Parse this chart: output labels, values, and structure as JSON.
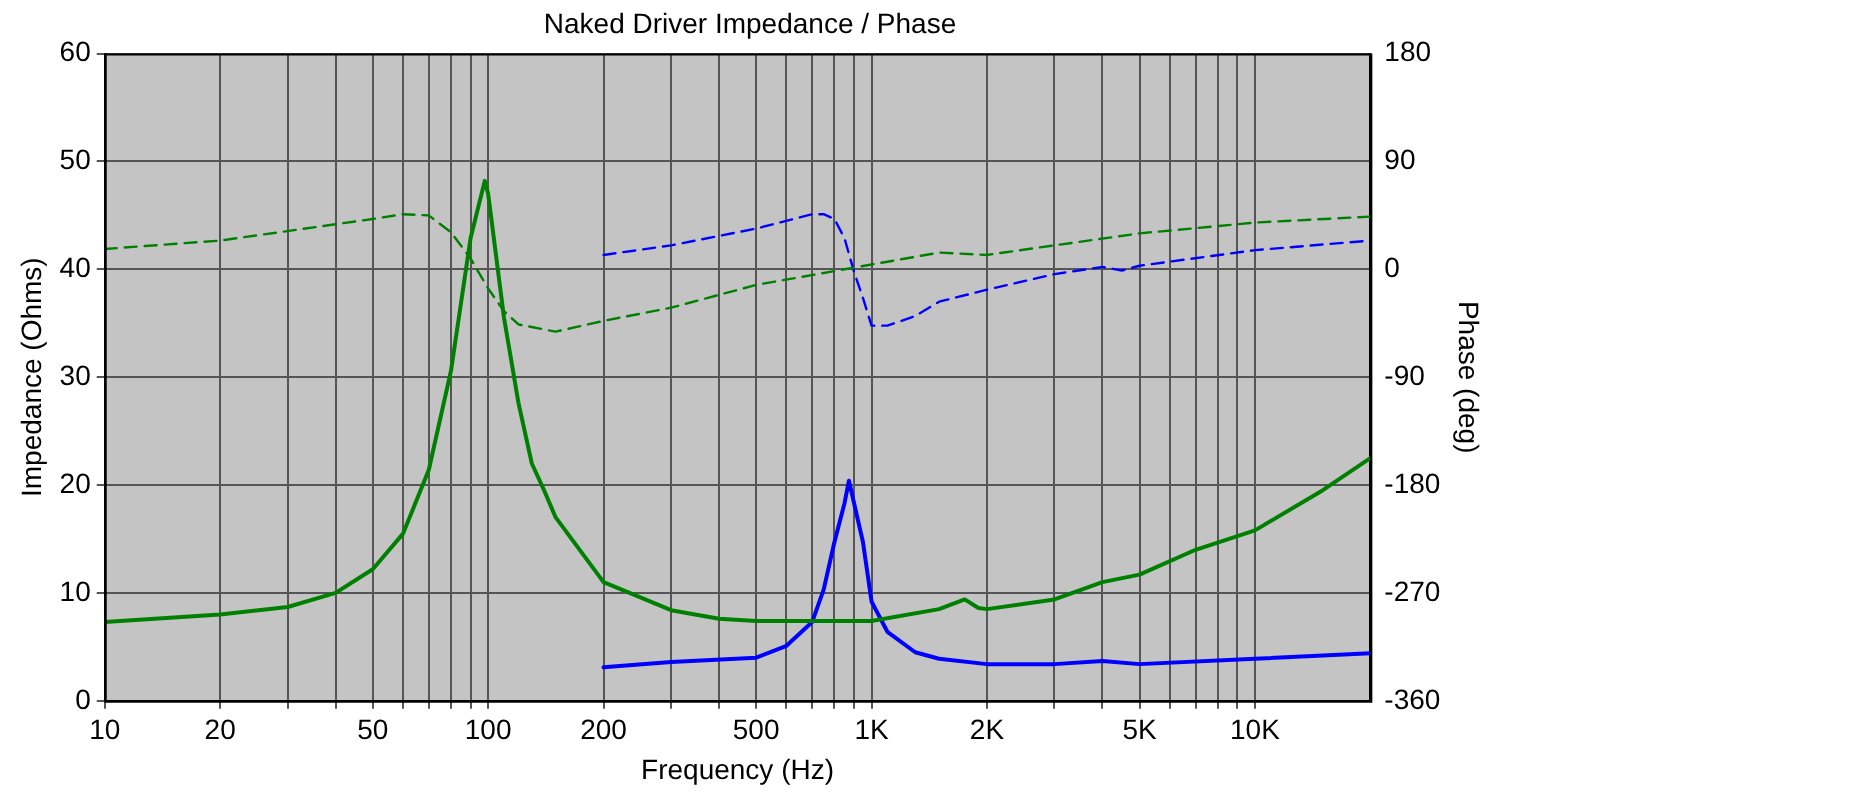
{
  "chart_data": {
    "type": "line",
    "title": "Naked Driver Impedance / Phase",
    "xlabel": "Frequency (Hz)",
    "ylabel": "Impedance (Ohms)",
    "y2label": "Phase (deg)",
    "log": "x",
    "grid": true,
    "legend": false,
    "marker": "none",
    "xlim": [
      10,
      20000
    ],
    "xticks": [
      10,
      20,
      {
        "value": 30,
        "label": null
      },
      {
        "value": 40,
        "label": null
      },
      50,
      {
        "value": 60,
        "label": null
      },
      {
        "value": 70,
        "label": null
      },
      {
        "value": 80,
        "label": null
      },
      {
        "value": 90,
        "label": null
      },
      100,
      200,
      {
        "value": 300,
        "label": null
      },
      {
        "value": 400,
        "label": null
      },
      500,
      {
        "value": 600,
        "label": null
      },
      {
        "value": 700,
        "label": null
      },
      {
        "value": 800,
        "label": null
      },
      {
        "value": 900,
        "label": null
      },
      {
        "value": 1000,
        "label": "1K"
      },
      {
        "value": 2000,
        "label": "2K"
      },
      {
        "value": 3000,
        "label": null
      },
      {
        "value": 4000,
        "label": null
      },
      {
        "value": 5000,
        "label": "5K"
      },
      {
        "value": 6000,
        "label": null
      },
      {
        "value": 7000,
        "label": null
      },
      {
        "value": 8000,
        "label": null
      },
      {
        "value": 9000,
        "label": null
      },
      {
        "value": 10000,
        "label": "10K"
      }
    ],
    "ylim": [
      0,
      60
    ],
    "yticks": [
      0,
      10,
      20,
      30,
      40,
      50,
      60
    ],
    "y2lim": [
      -360,
      180
    ],
    "y2ticks": [
      -360,
      -270,
      -180,
      -90,
      0,
      90,
      180
    ],
    "series": [
      {
        "color": "#008000",
        "line_style": "solid",
        "x": [
          10,
          20,
          30,
          40,
          50,
          60,
          70,
          80,
          90,
          98,
          100,
          110,
          120,
          130,
          140,
          150,
          200,
          300,
          400,
          500,
          1000,
          1500,
          1750,
          1900,
          2000,
          3000,
          4000,
          5000,
          7000,
          10000,
          15000,
          20000
        ],
        "values": [
          7.3,
          8.0,
          8.7,
          10,
          12.2,
          15.5,
          21.4,
          30.6,
          42.9,
          48.2,
          47,
          35.5,
          27.6,
          22,
          19.5,
          17,
          11,
          8.4,
          7.6,
          7.4,
          7.4,
          8.5,
          9.4,
          8.6,
          8.5,
          9.4,
          11,
          11.7,
          14,
          15.8,
          19.5,
          22.5
        ]
      },
      {
        "color": "#008000",
        "line_style": "dashed",
        "axis": "y2",
        "x": [
          10,
          20,
          50,
          60,
          70,
          80,
          90,
          100,
          110,
          120,
          150,
          200,
          300,
          500,
          1000,
          1500,
          2000,
          3000,
          5000,
          10000,
          20000
        ],
        "values": [
          17,
          24,
          42,
          46,
          45,
          31,
          9,
          -16,
          -35,
          -46,
          -52,
          -43,
          -32,
          -13,
          4,
          14,
          12,
          20,
          30,
          39,
          44
        ]
      },
      {
        "color": "#0000ff",
        "line_style": "solid",
        "x": [
          200,
          300,
          500,
          600,
          700,
          750,
          800,
          850,
          873,
          950,
          1000,
          1100,
          1300,
          1500,
          2000,
          3000,
          4000,
          5000,
          10000,
          20000
        ],
        "values": [
          3.1,
          3.6,
          4.0,
          5.1,
          7.3,
          10.3,
          14.7,
          18.3,
          20.4,
          14.7,
          9.2,
          6.4,
          4.5,
          3.9,
          3.4,
          3.4,
          3.7,
          3.4,
          3.9,
          4.4
        ]
      },
      {
        "color": "#0000ff",
        "line_style": "dashed",
        "axis": "y2",
        "x": [
          200,
          300,
          500,
          700,
          750,
          800,
          850,
          900,
          950,
          1000,
          1100,
          1300,
          1500,
          2000,
          3000,
          4000,
          4500,
          5000,
          10000,
          20000
        ],
        "values": [
          12,
          20,
          34,
          46,
          46,
          42,
          26,
          -2,
          -24,
          -47,
          -47,
          -39,
          -27,
          -17,
          -4,
          2,
          -1,
          3,
          16,
          24
        ]
      }
    ]
  }
}
